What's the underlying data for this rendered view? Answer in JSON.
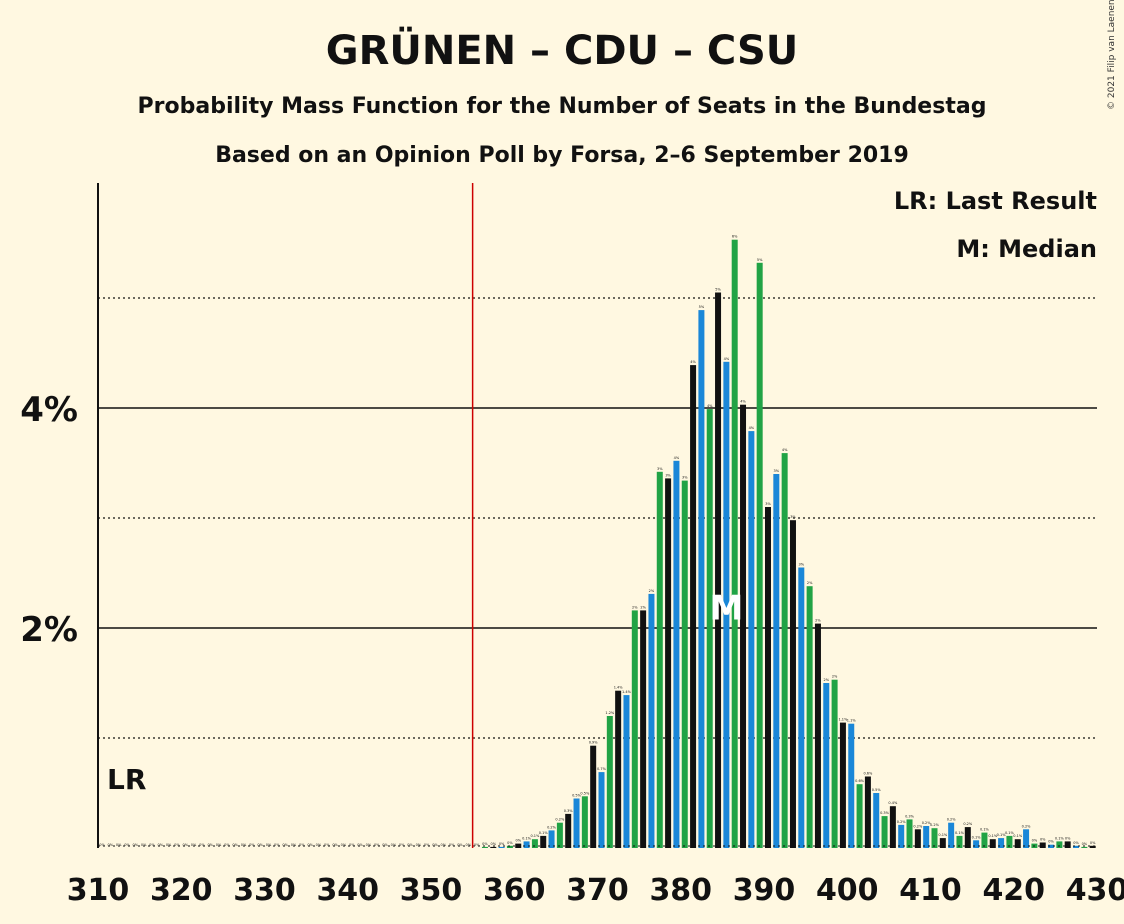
{
  "chart_data": {
    "type": "bar",
    "title": "GRÜNEN – CDU – CSU",
    "subtitle": "Probability Mass Function for the Number of Seats in the Bundestag",
    "subtitle2": "Based on an Opinion Poll by Forsa, 2–6 September 2019",
    "copyright": "© 2021 Filip van Laenen",
    "legend": {
      "lr": "LR: Last Result",
      "median": "M: Median",
      "placement": "top-right"
    },
    "last_result_label": "LR",
    "median_label": "M",
    "last_result_seat": 355,
    "median_seat": 385,
    "xlim": [
      310,
      430
    ],
    "ylim": [
      0,
      6
    ],
    "x_ticks": [
      "310",
      "320",
      "330",
      "340",
      "350",
      "360",
      "370",
      "380",
      "390",
      "400",
      "410",
      "420",
      "430"
    ],
    "y_ticks": [
      {
        "value": 2,
        "label": "2%"
      },
      {
        "value": 4,
        "label": "4%"
      }
    ],
    "dotted_gridlines": [
      1,
      3,
      5
    ],
    "colors": {
      "blue": "#1a87d8",
      "green": "#21a345",
      "black": "#111111",
      "lr_line": "#cc0000",
      "background": "#fff8e1"
    },
    "seats": [
      310,
      311,
      312,
      313,
      314,
      315,
      316,
      317,
      318,
      319,
      320,
      321,
      322,
      323,
      324,
      325,
      326,
      327,
      328,
      329,
      330,
      331,
      332,
      333,
      334,
      335,
      336,
      337,
      338,
      339,
      340,
      341,
      342,
      343,
      344,
      345,
      346,
      347,
      348,
      349,
      350,
      351,
      352,
      353,
      354,
      355,
      356,
      357,
      358,
      359,
      360,
      361,
      362,
      363,
      364,
      365,
      366,
      367,
      368,
      369,
      370,
      371,
      372,
      373,
      374,
      375,
      376,
      377,
      378,
      379,
      380,
      381,
      382,
      383,
      384,
      385,
      386,
      387,
      388,
      389,
      390,
      391,
      392,
      393,
      394,
      395,
      396,
      397,
      398,
      399,
      400,
      401,
      402,
      403,
      404,
      405,
      406,
      407,
      408,
      409,
      410,
      411,
      412,
      413,
      414,
      415,
      416,
      417,
      418,
      419,
      420,
      421,
      422,
      423,
      424,
      425,
      426,
      427,
      428,
      429
    ],
    "values": [
      0,
      0,
      0,
      0,
      0,
      0,
      0,
      0,
      0,
      0,
      0,
      0,
      0,
      0,
      0,
      0,
      0,
      0,
      0,
      0,
      0,
      0,
      0,
      0,
      0,
      0,
      0,
      0,
      0,
      0,
      0,
      0,
      0,
      0,
      0,
      0,
      0,
      0,
      0,
      0,
      0,
      0,
      0,
      0,
      0,
      0,
      0.01,
      0.01,
      0.01,
      0.02,
      0.04,
      0.06,
      0.08,
      0.11,
      0.16,
      0.23,
      0.31,
      0.45,
      0.47,
      0.93,
      0.69,
      1.2,
      1.43,
      1.39,
      2.16,
      2.16,
      2.31,
      3.42,
      3.36,
      3.52,
      3.34,
      4.39,
      4.89,
      3.99,
      5.05,
      4.42,
      5.53,
      4.03,
      3.79,
      5.32,
      3.1,
      3.4,
      3.59,
      2.98,
      2.55,
      2.38,
      2.04,
      1.5,
      1.53,
      1.14,
      1.13,
      0.58,
      0.65,
      0.5,
      0.29,
      0.38,
      0.21,
      0.26,
      0.17,
      0.2,
      0.18,
      0.09,
      0.23,
      0.11,
      0.19,
      0.07,
      0.14,
      0.08,
      0.09,
      0.11,
      0.08,
      0.17,
      0.04,
      0.05,
      0.03,
      0.06,
      0.06,
      0.02,
      0.01,
      0.02
    ],
    "bar_labels": [
      "0%",
      "0%",
      "0%",
      "0%",
      "0%",
      "0%",
      "0%",
      "0%",
      "0%",
      "0%",
      "0%",
      "0%",
      "0%",
      "0%",
      "0%",
      "0%",
      "0%",
      "0%",
      "0%",
      "0%",
      "0%",
      "0%",
      "0%",
      "0%",
      "0%",
      "0%",
      "0%",
      "0%",
      "0%",
      "0%",
      "0%",
      "0%",
      "0%",
      "0%",
      "0%",
      "0%",
      "0%",
      "0%",
      "0%",
      "0%",
      "0%",
      "0%",
      "0%",
      "0%",
      "0%",
      "0%",
      "0%",
      "0%",
      "0%",
      "0%",
      "0%",
      "0.1%",
      "0.1%",
      "0.1%",
      "0.2%",
      "0.2%",
      "0.3%",
      "0.5%",
      "0.5%",
      "0.9%",
      "0.7%",
      "1.2%",
      "1.4%",
      "1.4%",
      "2%",
      "2%",
      "2%",
      "3%",
      "3%",
      "4%",
      "3%",
      "4%",
      "5%",
      "4%",
      "5%",
      "4%",
      "6%",
      "4%",
      "4%",
      "5%",
      "3%",
      "3%",
      "4%",
      "3%",
      "3%",
      "2%",
      "2%",
      "2%",
      "2%",
      "1.1%",
      "1.1%",
      "0.6%",
      "0.6%",
      "0.5%",
      "0.3%",
      "0.4%",
      "0.2%",
      "0.3%",
      "0.2%",
      "0.2%",
      "0.2%",
      "0.1%",
      "0.2%",
      "0.1%",
      "0.2%",
      "0.1%",
      "0.1%",
      "0.1%",
      "0.1%",
      "0.1%",
      "0.1%",
      "0.2%",
      "0%",
      "0%",
      "0%",
      "0.1%",
      "0%",
      "0%",
      "0%",
      "0%"
    ]
  }
}
